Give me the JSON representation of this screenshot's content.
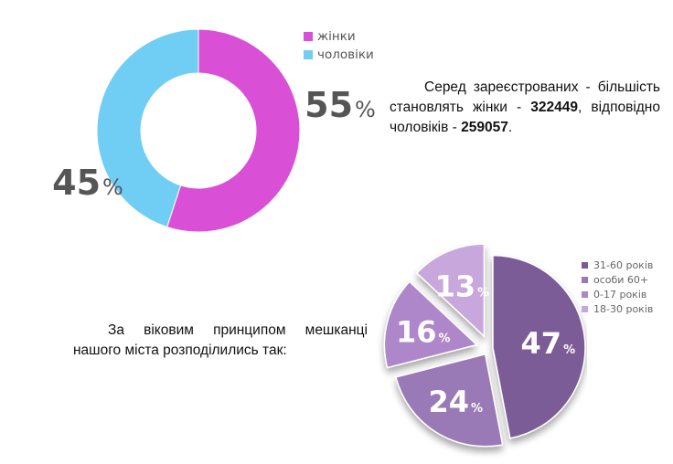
{
  "chart_data": [
    {
      "type": "pie",
      "variant": "donut",
      "categories": [
        "жінки",
        "чоловіки"
      ],
      "values": [
        55,
        45
      ],
      "value_suffix": "%",
      "colors": [
        "#d94fd6",
        "#70cdf4"
      ],
      "legend_position": "top-right"
    },
    {
      "type": "pie",
      "variant": "exploded-3d",
      "categories": [
        "31-60 років",
        "особи 60+",
        "0-17 років",
        "18-30 років"
      ],
      "values": [
        47,
        24,
        16,
        13
      ],
      "value_suffix": "%",
      "colors": [
        "#7c5c96",
        "#9a7ab6",
        "#ad87c9",
        "#c8a8dc"
      ],
      "legend_position": "top-right"
    }
  ],
  "text": {
    "para1_a": "Серед зареєстрованих - більшість становлять жінки - ",
    "women_count": "322449",
    "para1_b": ", відповідно чоловіків - ",
    "men_count": "259057",
    "para1_c": ".",
    "para2": "За віковим принципом мешканці нашого міста розподілились так:"
  }
}
